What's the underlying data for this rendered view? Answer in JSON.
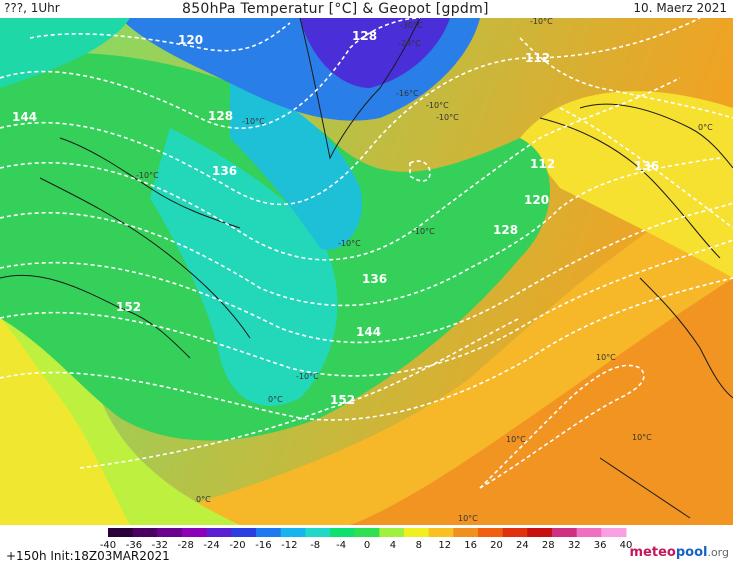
{
  "header": {
    "left": "???, 1Uhr",
    "title": "850hPa Temperatur [°C] & Geopot [gpdm]",
    "date": "10. Maerz 2021"
  },
  "footer": {
    "run": "+150h  Init:18Z03MAR2021",
    "logo_main": "meteo",
    "logo_accent": "pool",
    "logo_suffix": ".org"
  },
  "legend": {
    "ticks": [
      "-40",
      "-36",
      "-32",
      "-28",
      "-24",
      "-20",
      "-16",
      "-12",
      "-8",
      "-4",
      "0",
      "4",
      "8",
      "12",
      "16",
      "20",
      "24",
      "28",
      "32",
      "36",
      "40"
    ],
    "colors": [
      "#2a003a",
      "#4a0060",
      "#6a0090",
      "#8c00b8",
      "#5a1fd0",
      "#2a3fe0",
      "#1e78f0",
      "#18b4f0",
      "#20d8c8",
      "#10e070",
      "#30e050",
      "#a0f040",
      "#f0f020",
      "#f8c020",
      "#f09020",
      "#f06010",
      "#e03010",
      "#c81010",
      "#d03080",
      "#f070c0",
      "#f8a0e0"
    ]
  },
  "isolines": [
    {
      "label": "120"
    },
    {
      "label": "128"
    },
    {
      "label": "112"
    },
    {
      "label": "144"
    },
    {
      "label": "128"
    },
    {
      "label": "136"
    },
    {
      "label": "112"
    },
    {
      "label": "136"
    },
    {
      "label": "120"
    },
    {
      "label": "128"
    },
    {
      "label": "136"
    },
    {
      "label": "152"
    },
    {
      "label": "144"
    },
    {
      "label": "152"
    }
  ],
  "temp_labels": [
    {
      "text": "-30°C"
    },
    {
      "text": "-24°C"
    },
    {
      "text": "-16°C"
    },
    {
      "text": "-10°C"
    },
    {
      "text": "-10°C"
    },
    {
      "text": "-10°C"
    },
    {
      "text": "-10°C"
    },
    {
      "text": "-10°C"
    },
    {
      "text": "-10°C"
    },
    {
      "text": "-10°C"
    },
    {
      "text": "-10°C"
    },
    {
      "text": "0°C"
    },
    {
      "text": "0°C"
    },
    {
      "text": "0°C"
    },
    {
      "text": "10°C"
    },
    {
      "text": "10°C"
    },
    {
      "text": "10°C"
    },
    {
      "text": "10°C"
    }
  ]
}
